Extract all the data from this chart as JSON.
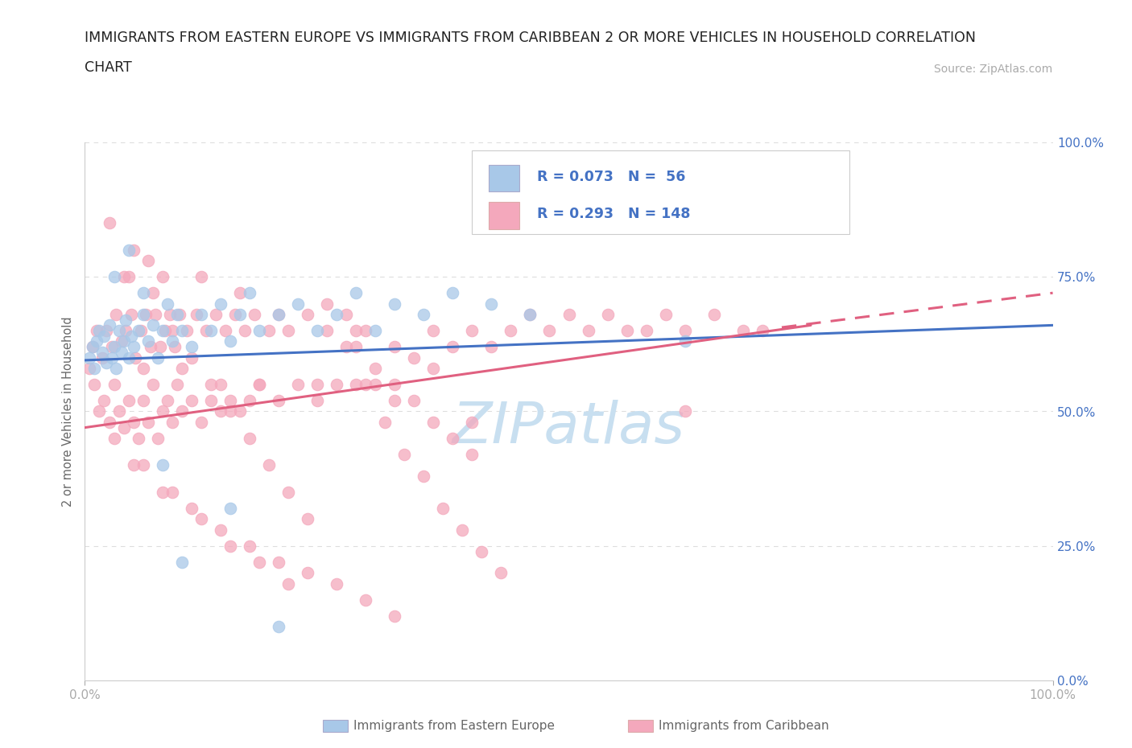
{
  "title_line1": "IMMIGRANTS FROM EASTERN EUROPE VS IMMIGRANTS FROM CARIBBEAN 2 OR MORE VEHICLES IN HOUSEHOLD CORRELATION",
  "title_line2": "CHART",
  "source_text": "Source: ZipAtlas.com",
  "ylabel": "2 or more Vehicles in Household",
  "xlim": [
    0,
    1.0
  ],
  "ylim": [
    0,
    1.0
  ],
  "legend_label1": "Immigrants from Eastern Europe",
  "legend_label2": "Immigrants from Caribbean",
  "R1": 0.073,
  "N1": 56,
  "R2": 0.293,
  "N2": 148,
  "color1": "#a8c8e8",
  "color2": "#f4a8bc",
  "line_color1": "#4472c4",
  "line_color2": "#e06080",
  "watermark": "ZIPatlas",
  "watermark_color": "#c8dff0",
  "title_color": "#222222",
  "axis_label_color": "#666666",
  "tick_label_color": "#aaaaaa",
  "right_tick_color": "#4472c4",
  "background_color": "#ffffff",
  "grid_color": "#dddddd",
  "scatter1_x": [
    0.005,
    0.008,
    0.01,
    0.012,
    0.015,
    0.018,
    0.02,
    0.022,
    0.025,
    0.028,
    0.03,
    0.032,
    0.035,
    0.038,
    0.04,
    0.042,
    0.045,
    0.048,
    0.05,
    0.055,
    0.06,
    0.065,
    0.07,
    0.075,
    0.08,
    0.085,
    0.09,
    0.095,
    0.1,
    0.11,
    0.12,
    0.13,
    0.14,
    0.15,
    0.16,
    0.17,
    0.18,
    0.2,
    0.22,
    0.24,
    0.26,
    0.28,
    0.3,
    0.32,
    0.35,
    0.38,
    0.42,
    0.46,
    0.03,
    0.045,
    0.06,
    0.08,
    0.1,
    0.15,
    0.2,
    0.62
  ],
  "scatter1_y": [
    0.6,
    0.62,
    0.58,
    0.63,
    0.65,
    0.61,
    0.64,
    0.59,
    0.66,
    0.6,
    0.62,
    0.58,
    0.65,
    0.61,
    0.63,
    0.67,
    0.6,
    0.64,
    0.62,
    0.65,
    0.68,
    0.63,
    0.66,
    0.6,
    0.65,
    0.7,
    0.63,
    0.68,
    0.65,
    0.62,
    0.68,
    0.65,
    0.7,
    0.63,
    0.68,
    0.72,
    0.65,
    0.68,
    0.7,
    0.65,
    0.68,
    0.72,
    0.65,
    0.7,
    0.68,
    0.72,
    0.7,
    0.68,
    0.75,
    0.8,
    0.72,
    0.4,
    0.22,
    0.32,
    0.1,
    0.63
  ],
  "scatter2_x": [
    0.005,
    0.008,
    0.01,
    0.012,
    0.015,
    0.018,
    0.02,
    0.022,
    0.025,
    0.028,
    0.03,
    0.032,
    0.035,
    0.038,
    0.04,
    0.042,
    0.045,
    0.048,
    0.05,
    0.052,
    0.055,
    0.058,
    0.06,
    0.063,
    0.065,
    0.068,
    0.07,
    0.073,
    0.075,
    0.078,
    0.08,
    0.083,
    0.085,
    0.088,
    0.09,
    0.093,
    0.095,
    0.098,
    0.1,
    0.105,
    0.11,
    0.115,
    0.12,
    0.125,
    0.13,
    0.135,
    0.14,
    0.145,
    0.15,
    0.155,
    0.16,
    0.165,
    0.17,
    0.175,
    0.18,
    0.19,
    0.2,
    0.21,
    0.22,
    0.23,
    0.24,
    0.25,
    0.26,
    0.27,
    0.28,
    0.29,
    0.3,
    0.32,
    0.34,
    0.36,
    0.38,
    0.4,
    0.42,
    0.44,
    0.46,
    0.48,
    0.5,
    0.52,
    0.54,
    0.56,
    0.58,
    0.6,
    0.62,
    0.65,
    0.68,
    0.7,
    0.04,
    0.06,
    0.08,
    0.1,
    0.12,
    0.14,
    0.16,
    0.18,
    0.2,
    0.24,
    0.28,
    0.32,
    0.36,
    0.4,
    0.05,
    0.07,
    0.09,
    0.11,
    0.13,
    0.15,
    0.17,
    0.19,
    0.21,
    0.23,
    0.25,
    0.27,
    0.29,
    0.31,
    0.33,
    0.35,
    0.37,
    0.39,
    0.41,
    0.43,
    0.05,
    0.08,
    0.11,
    0.14,
    0.17,
    0.2,
    0.23,
    0.26,
    0.29,
    0.32,
    0.03,
    0.06,
    0.09,
    0.12,
    0.15,
    0.18,
    0.21,
    0.62,
    0.28,
    0.3,
    0.32,
    0.34,
    0.36,
    0.38,
    0.4,
    0.025,
    0.045,
    0.065
  ],
  "scatter2_y": [
    0.58,
    0.62,
    0.55,
    0.65,
    0.5,
    0.6,
    0.52,
    0.65,
    0.48,
    0.62,
    0.55,
    0.68,
    0.5,
    0.63,
    0.47,
    0.65,
    0.52,
    0.68,
    0.48,
    0.6,
    0.45,
    0.65,
    0.52,
    0.68,
    0.48,
    0.62,
    0.55,
    0.68,
    0.45,
    0.62,
    0.5,
    0.65,
    0.52,
    0.68,
    0.48,
    0.62,
    0.55,
    0.68,
    0.5,
    0.65,
    0.52,
    0.68,
    0.48,
    0.65,
    0.52,
    0.68,
    0.5,
    0.65,
    0.52,
    0.68,
    0.5,
    0.65,
    0.52,
    0.68,
    0.55,
    0.65,
    0.52,
    0.65,
    0.55,
    0.68,
    0.52,
    0.65,
    0.55,
    0.68,
    0.55,
    0.65,
    0.55,
    0.62,
    0.6,
    0.65,
    0.62,
    0.65,
    0.62,
    0.65,
    0.68,
    0.65,
    0.68,
    0.65,
    0.68,
    0.65,
    0.65,
    0.68,
    0.65,
    0.68,
    0.65,
    0.65,
    0.75,
    0.58,
    0.75,
    0.58,
    0.75,
    0.55,
    0.72,
    0.55,
    0.68,
    0.55,
    0.65,
    0.52,
    0.58,
    0.48,
    0.8,
    0.72,
    0.65,
    0.6,
    0.55,
    0.5,
    0.45,
    0.4,
    0.35,
    0.3,
    0.7,
    0.62,
    0.55,
    0.48,
    0.42,
    0.38,
    0.32,
    0.28,
    0.24,
    0.2,
    0.4,
    0.35,
    0.32,
    0.28,
    0.25,
    0.22,
    0.2,
    0.18,
    0.15,
    0.12,
    0.45,
    0.4,
    0.35,
    0.3,
    0.25,
    0.22,
    0.18,
    0.5,
    0.62,
    0.58,
    0.55,
    0.52,
    0.48,
    0.45,
    0.42,
    0.85,
    0.75,
    0.78
  ],
  "line1_x0": 0.0,
  "line1_x1": 1.0,
  "line1_y0": 0.595,
  "line1_y1": 0.66,
  "line2_x0": 0.0,
  "line2_x1": 0.75,
  "line2_y0": 0.47,
  "line2_y1": 0.66
}
